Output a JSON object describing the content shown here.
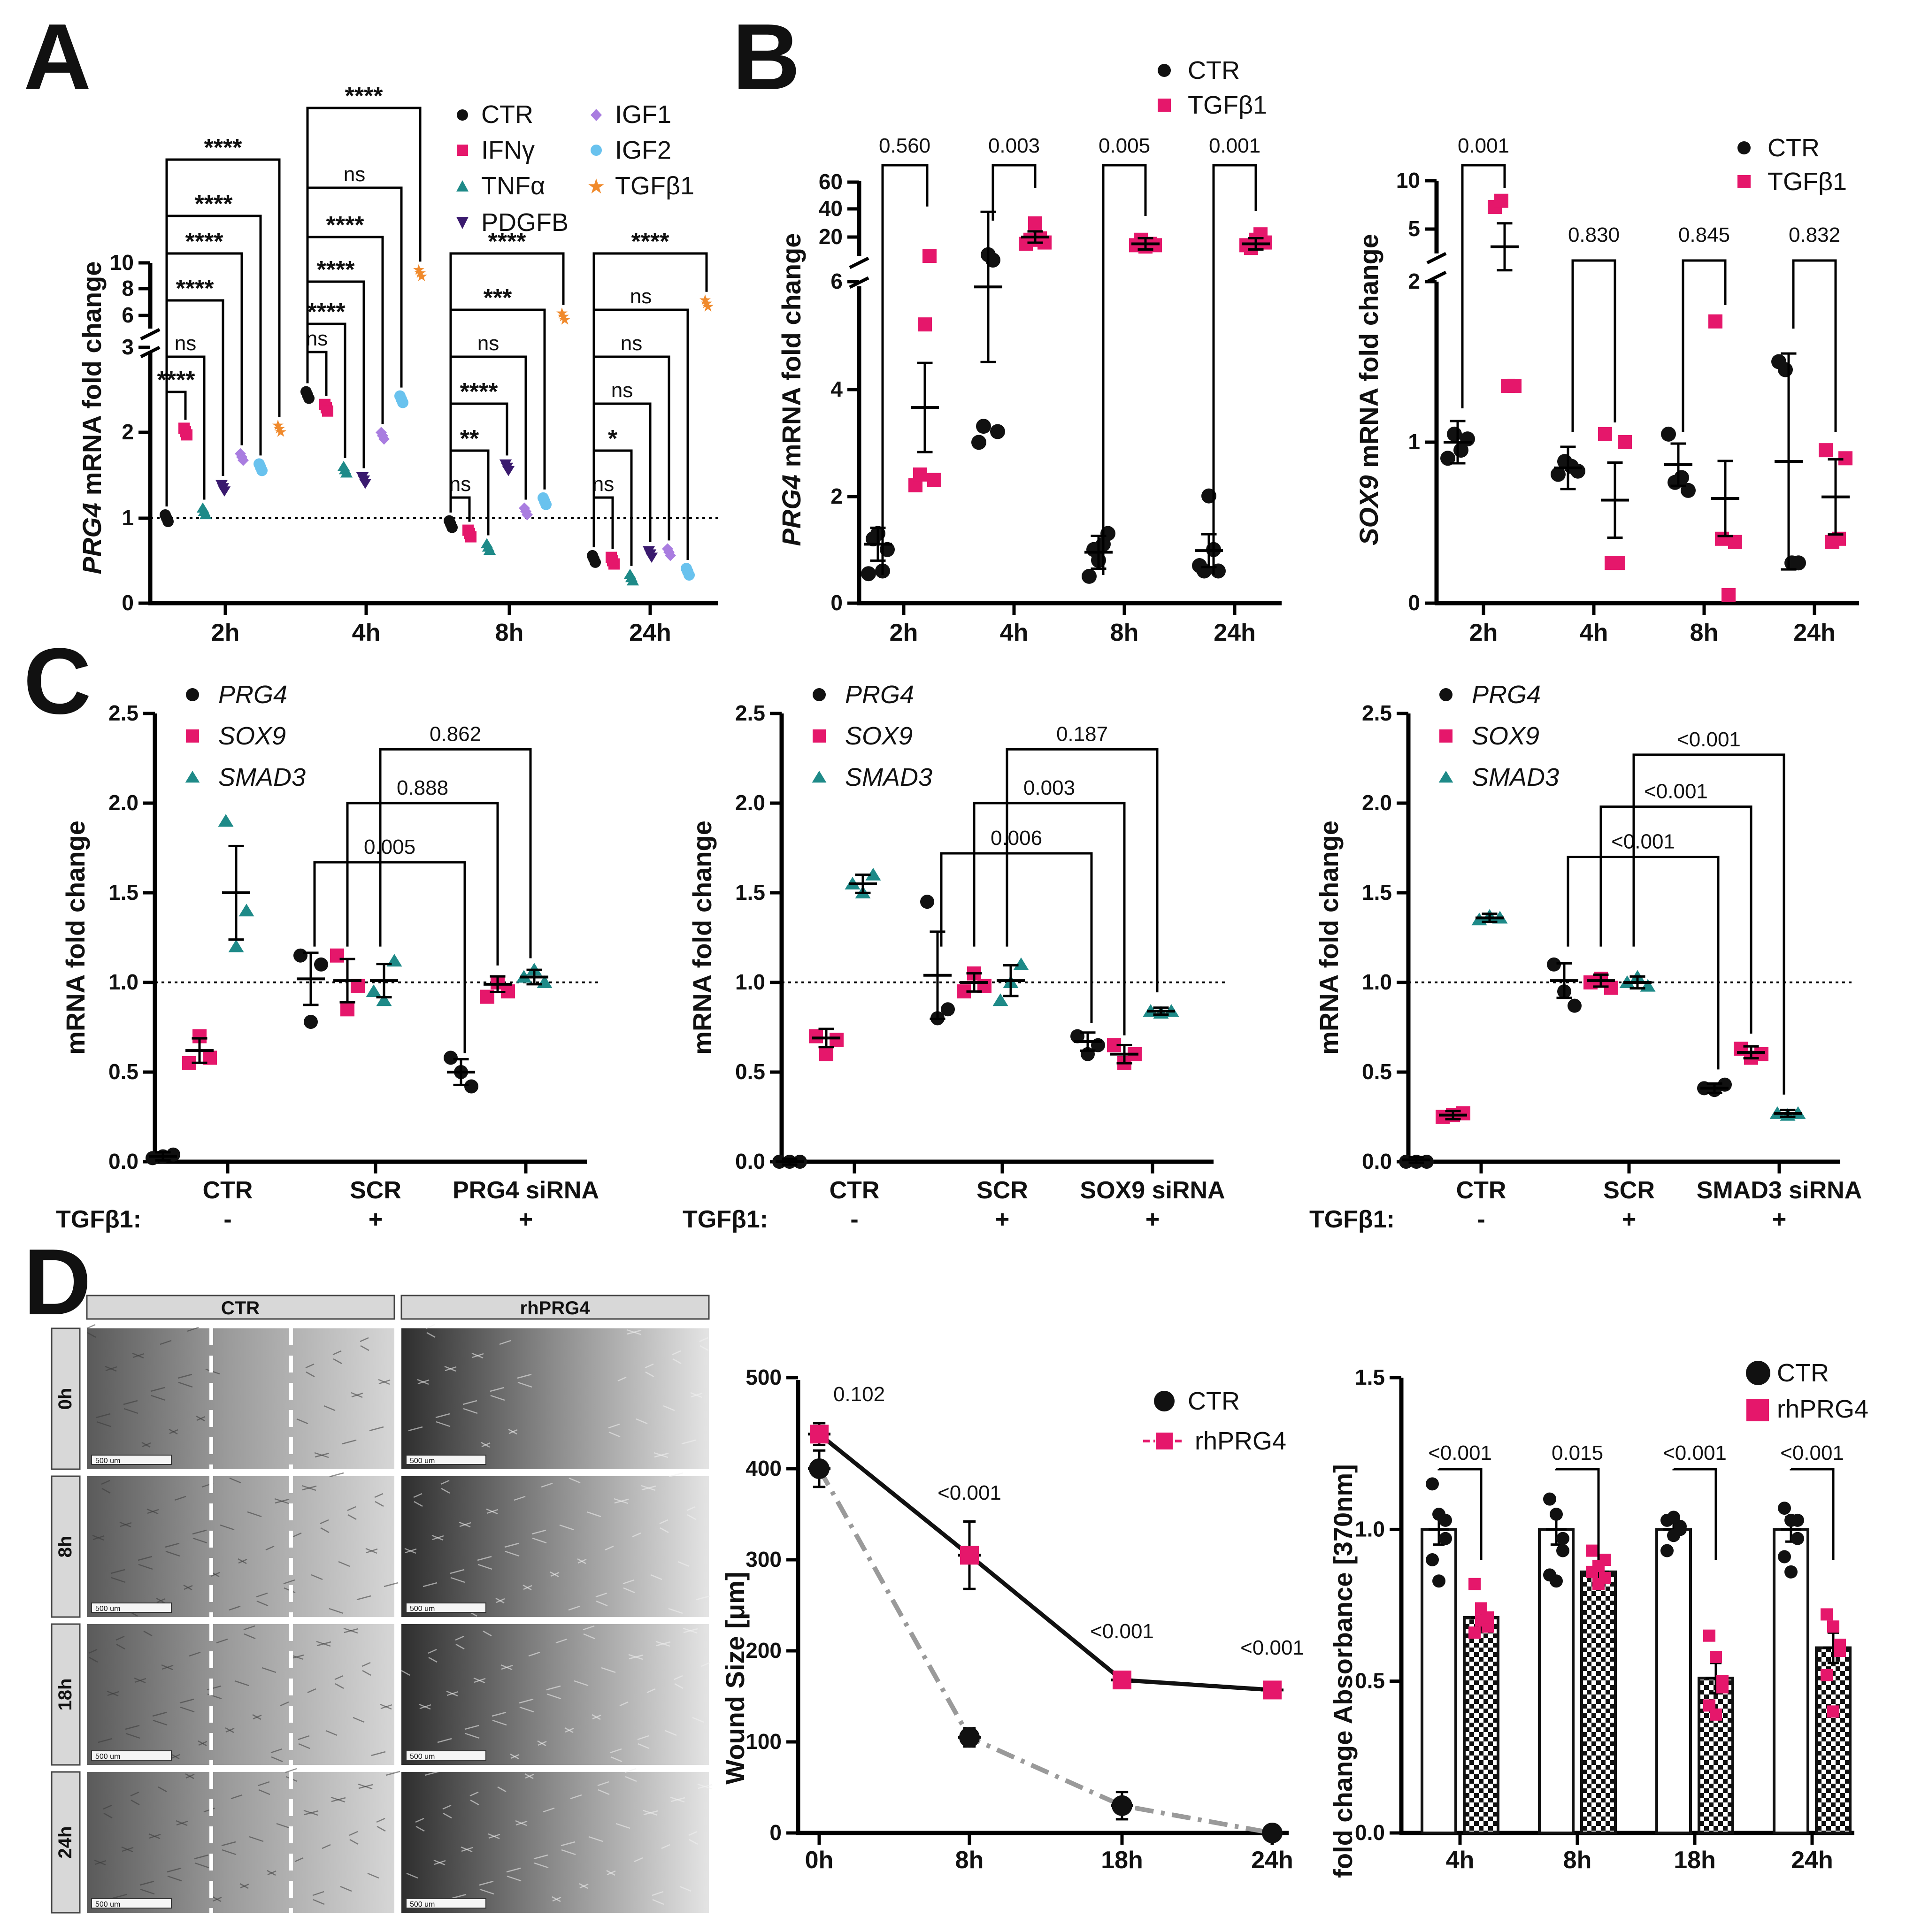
{
  "figure": {
    "panel_labels": [
      "A",
      "B",
      "C",
      "D"
    ],
    "colors": {
      "ctr": "#111111",
      "ifn": "#e5176b",
      "tnf": "#1e8a88",
      "pdgfb": "#3a1a6e",
      "igf1": "#a97de0",
      "igf2": "#69c2ee",
      "tgfb1": "#f08a2c",
      "magenta": "#e5176b",
      "teal": "#1e8a88"
    }
  },
  "panelA": {
    "ylabel_gene": "PRG4",
    "ylabel_rest": " mRNA fold change",
    "legend": [
      "CTR",
      "IFNγ",
      "TNFα",
      "PDGFB",
      "IGF1",
      "IGF2",
      "TGFβ1"
    ],
    "yticks_low": [
      "0",
      "1",
      "2",
      "3"
    ],
    "yticks_high": [
      "6",
      "8",
      "10"
    ],
    "brackets": {
      "t2h": [
        "****",
        "ns",
        "****",
        "****",
        "****",
        "****"
      ],
      "t4h": [
        "ns",
        "****",
        "****",
        "****",
        "ns",
        "****"
      ],
      "t8h": [
        "ns",
        "**",
        "****",
        "ns",
        "***",
        "****"
      ],
      "t24h": [
        "ns",
        "*",
        "ns",
        "ns",
        "ns",
        "****"
      ]
    }
  },
  "panelB1": {
    "ylabel_gene": "PRG4",
    "ylabel_rest": " mRNA fold change",
    "legend": [
      "CTR",
      "TGFβ1"
    ],
    "yticks_low": [
      "0",
      "2",
      "4",
      "6"
    ],
    "yticks_high": [
      "20",
      "40",
      "60"
    ],
    "pvalues": [
      "0.560",
      "0.003",
      "0.005",
      "0.001"
    ]
  },
  "panelB2": {
    "ylabel_gene": "SOX9",
    "ylabel_rest": " mRNA fold change",
    "legend": [
      "CTR",
      "TGFβ1"
    ],
    "yticks_low": [
      "0",
      "1",
      "2"
    ],
    "yticks_high": [
      "5",
      "10"
    ],
    "pvalues": [
      "0.001",
      "0.830",
      "0.845",
      "0.832"
    ]
  },
  "panelC": {
    "ylabel": "mRNA fold change",
    "yticks": [
      "0.0",
      "0.5",
      "1.0",
      "1.5",
      "2.0",
      "2.5"
    ],
    "legend": [
      "PRG4",
      "SOX9",
      "SMAD3"
    ],
    "treatment_label": "TGFβ1:",
    "treatment_signs": [
      "-",
      "+",
      "+"
    ],
    "c1": {
      "categories": [
        "CTR",
        "SCR",
        "PRG4 siRNA"
      ],
      "pvalues": [
        "0.005",
        "0.888",
        "0.862"
      ]
    },
    "c2": {
      "categories": [
        "CTR",
        "SCR",
        "SOX9 siRNA"
      ],
      "pvalues": [
        "0.006",
        "0.003",
        "0.187"
      ]
    },
    "c3": {
      "categories": [
        "CTR",
        "SCR",
        "SMAD3 siRNA"
      ],
      "pvalues": [
        "<0.001",
        "<0.001",
        "<0.001"
      ]
    }
  },
  "panelD": {
    "micrographs": {
      "columns": [
        "CTR",
        "rhPRG4"
      ],
      "rows": [
        "0h",
        "8h",
        "18h",
        "24h"
      ],
      "scalebar": "500 um"
    },
    "wound": {
      "ylabel": "Wound Size [μm]",
      "yticks": [
        "0",
        "100",
        "200",
        "300",
        "400",
        "500"
      ],
      "legend": [
        "CTR",
        "rhPRG4"
      ],
      "pvalues": [
        "0.102",
        "<0.001",
        "<0.001",
        "<0.001"
      ]
    },
    "absorb": {
      "ylabel": "fold change Absorbance [370nm]",
      "yticks": [
        "0.0",
        "0.5",
        "1.0",
        "1.5"
      ],
      "legend": [
        "CTR",
        "rhPRG4"
      ],
      "pvalues": [
        "<0.001",
        "0.015",
        "<0.001",
        "<0.001"
      ]
    }
  },
  "chart_data": [
    {
      "id": "A",
      "type": "scatter",
      "ylabel": "PRG4 mRNA fold change",
      "ylim": [
        0,
        10
      ],
      "categories": [
        "2h",
        "4h",
        "8h",
        "24h"
      ],
      "series": [
        {
          "name": "CTR",
          "values": [
            1.0,
            2.45,
            0.93,
            0.52
          ]
        },
        {
          "name": "IFNγ",
          "values": [
            2.02,
            2.3,
            0.82,
            0.5
          ]
        },
        {
          "name": "TNFα",
          "values": [
            1.08,
            1.57,
            0.66,
            0.3
          ]
        },
        {
          "name": "PDGFB",
          "values": [
            1.36,
            1.45,
            1.6,
            0.58
          ]
        },
        {
          "name": "IGF1",
          "values": [
            1.72,
            1.97,
            1.08,
            0.6
          ]
        },
        {
          "name": "IGF2",
          "values": [
            1.6,
            2.4,
            1.2,
            0.37
          ]
        },
        {
          "name": "TGFβ1",
          "values": [
            2.05,
            9.2,
            5.9,
            6.9
          ]
        }
      ]
    },
    {
      "id": "B-PRG4",
      "type": "scatter",
      "ylabel": "PRG4 mRNA fold change",
      "categories": [
        "2h",
        "4h",
        "8h",
        "24h"
      ],
      "series": [
        {
          "name": "CTR",
          "values": [
            1.1,
            5.9,
            0.95,
            0.98
          ]
        },
        {
          "name": "TGFβ1",
          "values": [
            3.65,
            20,
            15,
            15
          ]
        }
      ]
    },
    {
      "id": "B-SOX9",
      "type": "scatter",
      "ylabel": "SOX9 mRNA fold change",
      "categories": [
        "2h",
        "4h",
        "8h",
        "24h"
      ],
      "series": [
        {
          "name": "CTR",
          "values": [
            1.0,
            0.84,
            0.86,
            0.88
          ]
        },
        {
          "name": "TGFβ1",
          "values": [
            4.8,
            0.64,
            0.65,
            0.66
          ]
        }
      ]
    },
    {
      "id": "C-PRG4-siRNA",
      "type": "scatter",
      "ylim": [
        0,
        2.5
      ],
      "categories": [
        "CTR",
        "SCR",
        "PRG4 siRNA"
      ],
      "series": [
        {
          "name": "PRG4",
          "values": [
            0.03,
            1.02,
            0.5
          ]
        },
        {
          "name": "SOX9",
          "values": [
            0.62,
            1.01,
            0.99
          ]
        },
        {
          "name": "SMAD3",
          "values": [
            1.5,
            1.01,
            1.03
          ]
        }
      ]
    },
    {
      "id": "C-SOX9-siRNA",
      "type": "scatter",
      "ylim": [
        0,
        2.5
      ],
      "categories": [
        "CTR",
        "SCR",
        "SOX9 siRNA"
      ],
      "series": [
        {
          "name": "PRG4",
          "values": [
            0.0,
            1.04,
            0.67
          ]
        },
        {
          "name": "SOX9",
          "values": [
            0.69,
            1.0,
            0.6
          ]
        },
        {
          "name": "SMAD3",
          "values": [
            1.55,
            1.01,
            0.84
          ]
        }
      ]
    },
    {
      "id": "C-SMAD3-siRNA",
      "type": "scatter",
      "ylim": [
        0,
        2.5
      ],
      "categories": [
        "CTR",
        "SCR",
        "SMAD3 siRNA"
      ],
      "series": [
        {
          "name": "PRG4",
          "values": [
            0.01,
            1.01,
            0.41
          ]
        },
        {
          "name": "SOX9",
          "values": [
            0.26,
            1.01,
            0.61
          ]
        },
        {
          "name": "SMAD3",
          "values": [
            1.36,
            1.0,
            0.27
          ]
        }
      ]
    },
    {
      "id": "D-wound",
      "type": "line",
      "ylabel": "Wound Size [μm]",
      "ylim": [
        0,
        500
      ],
      "x": [
        "0h",
        "8h",
        "18h",
        "24h"
      ],
      "series": [
        {
          "name": "CTR",
          "values": [
            400,
            105,
            30,
            0
          ],
          "err": [
            20,
            10,
            15,
            0
          ]
        },
        {
          "name": "rhPRG4",
          "values": [
            438,
            305,
            168,
            157
          ],
          "err": [
            12,
            37,
            5,
            5
          ]
        }
      ]
    },
    {
      "id": "D-absorbance",
      "type": "bar",
      "ylabel": "fold change Absorbance [370nm]",
      "ylim": [
        0,
        1.5
      ],
      "categories": [
        "4h",
        "8h",
        "18h",
        "24h"
      ],
      "series": [
        {
          "name": "CTR",
          "values": [
            1.0,
            1.0,
            1.0,
            1.0
          ],
          "err": [
            0.05,
            0.05,
            0.03,
            0.04
          ]
        },
        {
          "name": "rhPRG4",
          "values": [
            0.71,
            0.86,
            0.51,
            0.61
          ],
          "err": [
            0.04,
            0.03,
            0.05,
            0.05
          ]
        }
      ]
    }
  ]
}
